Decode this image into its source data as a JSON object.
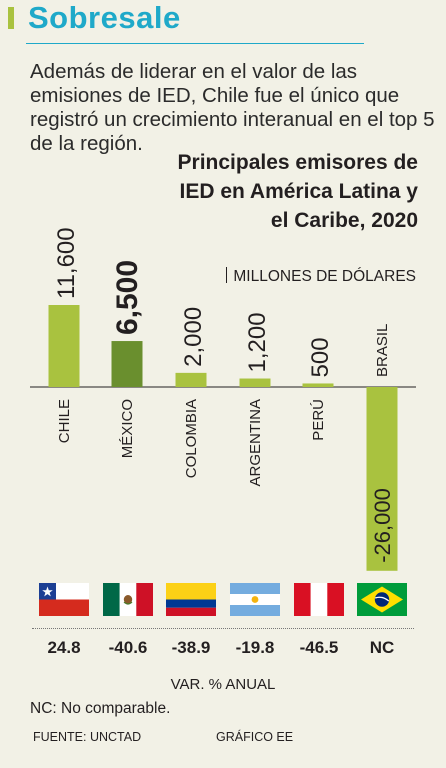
{
  "header": {
    "title": "Sobresale",
    "intro": "Además de liderar en el valor de las emisiones de IED, Chile fue el único que registró un crecimiento interanual en el top 5 de la región."
  },
  "chart_data": {
    "type": "bar",
    "title": "Principales emisores de IED en América Latina y el Caribe, 2020",
    "units": "MILLONES DE DÓLARES",
    "categories": [
      "CHILE",
      "MÉXICO",
      "COLOMBIA",
      "ARGENTINA",
      "PERÚ",
      "BRASIL"
    ],
    "values": [
      11600,
      6500,
      2000,
      1200,
      500,
      -26000
    ],
    "value_labels": [
      "11,600",
      "6,500",
      "2,000",
      "1,200",
      "500",
      "-26,000"
    ],
    "highlight": "MÉXICO",
    "ylim": [
      -26000,
      11600
    ],
    "colors": {
      "bar": "#a9c23f",
      "highlight": "#6a8f2e"
    }
  },
  "variation": {
    "values": [
      "24.8",
      "-40.6",
      "-38.9",
      "-19.8",
      "-46.5",
      "NC"
    ],
    "caption": "VAR. % ANUAL"
  },
  "flags": [
    "chile-flag",
    "mexico-flag",
    "colombia-flag",
    "argentina-flag",
    "peru-flag",
    "brazil-flag"
  ],
  "footer": {
    "note": "NC: No comparable.",
    "source": "FUENTE: UNCTAD",
    "credit": "GRÁFICO EE"
  },
  "colors": {
    "title": "#1fa9c9",
    "accent": "#a9c23f",
    "background": "#f2f1e6"
  }
}
